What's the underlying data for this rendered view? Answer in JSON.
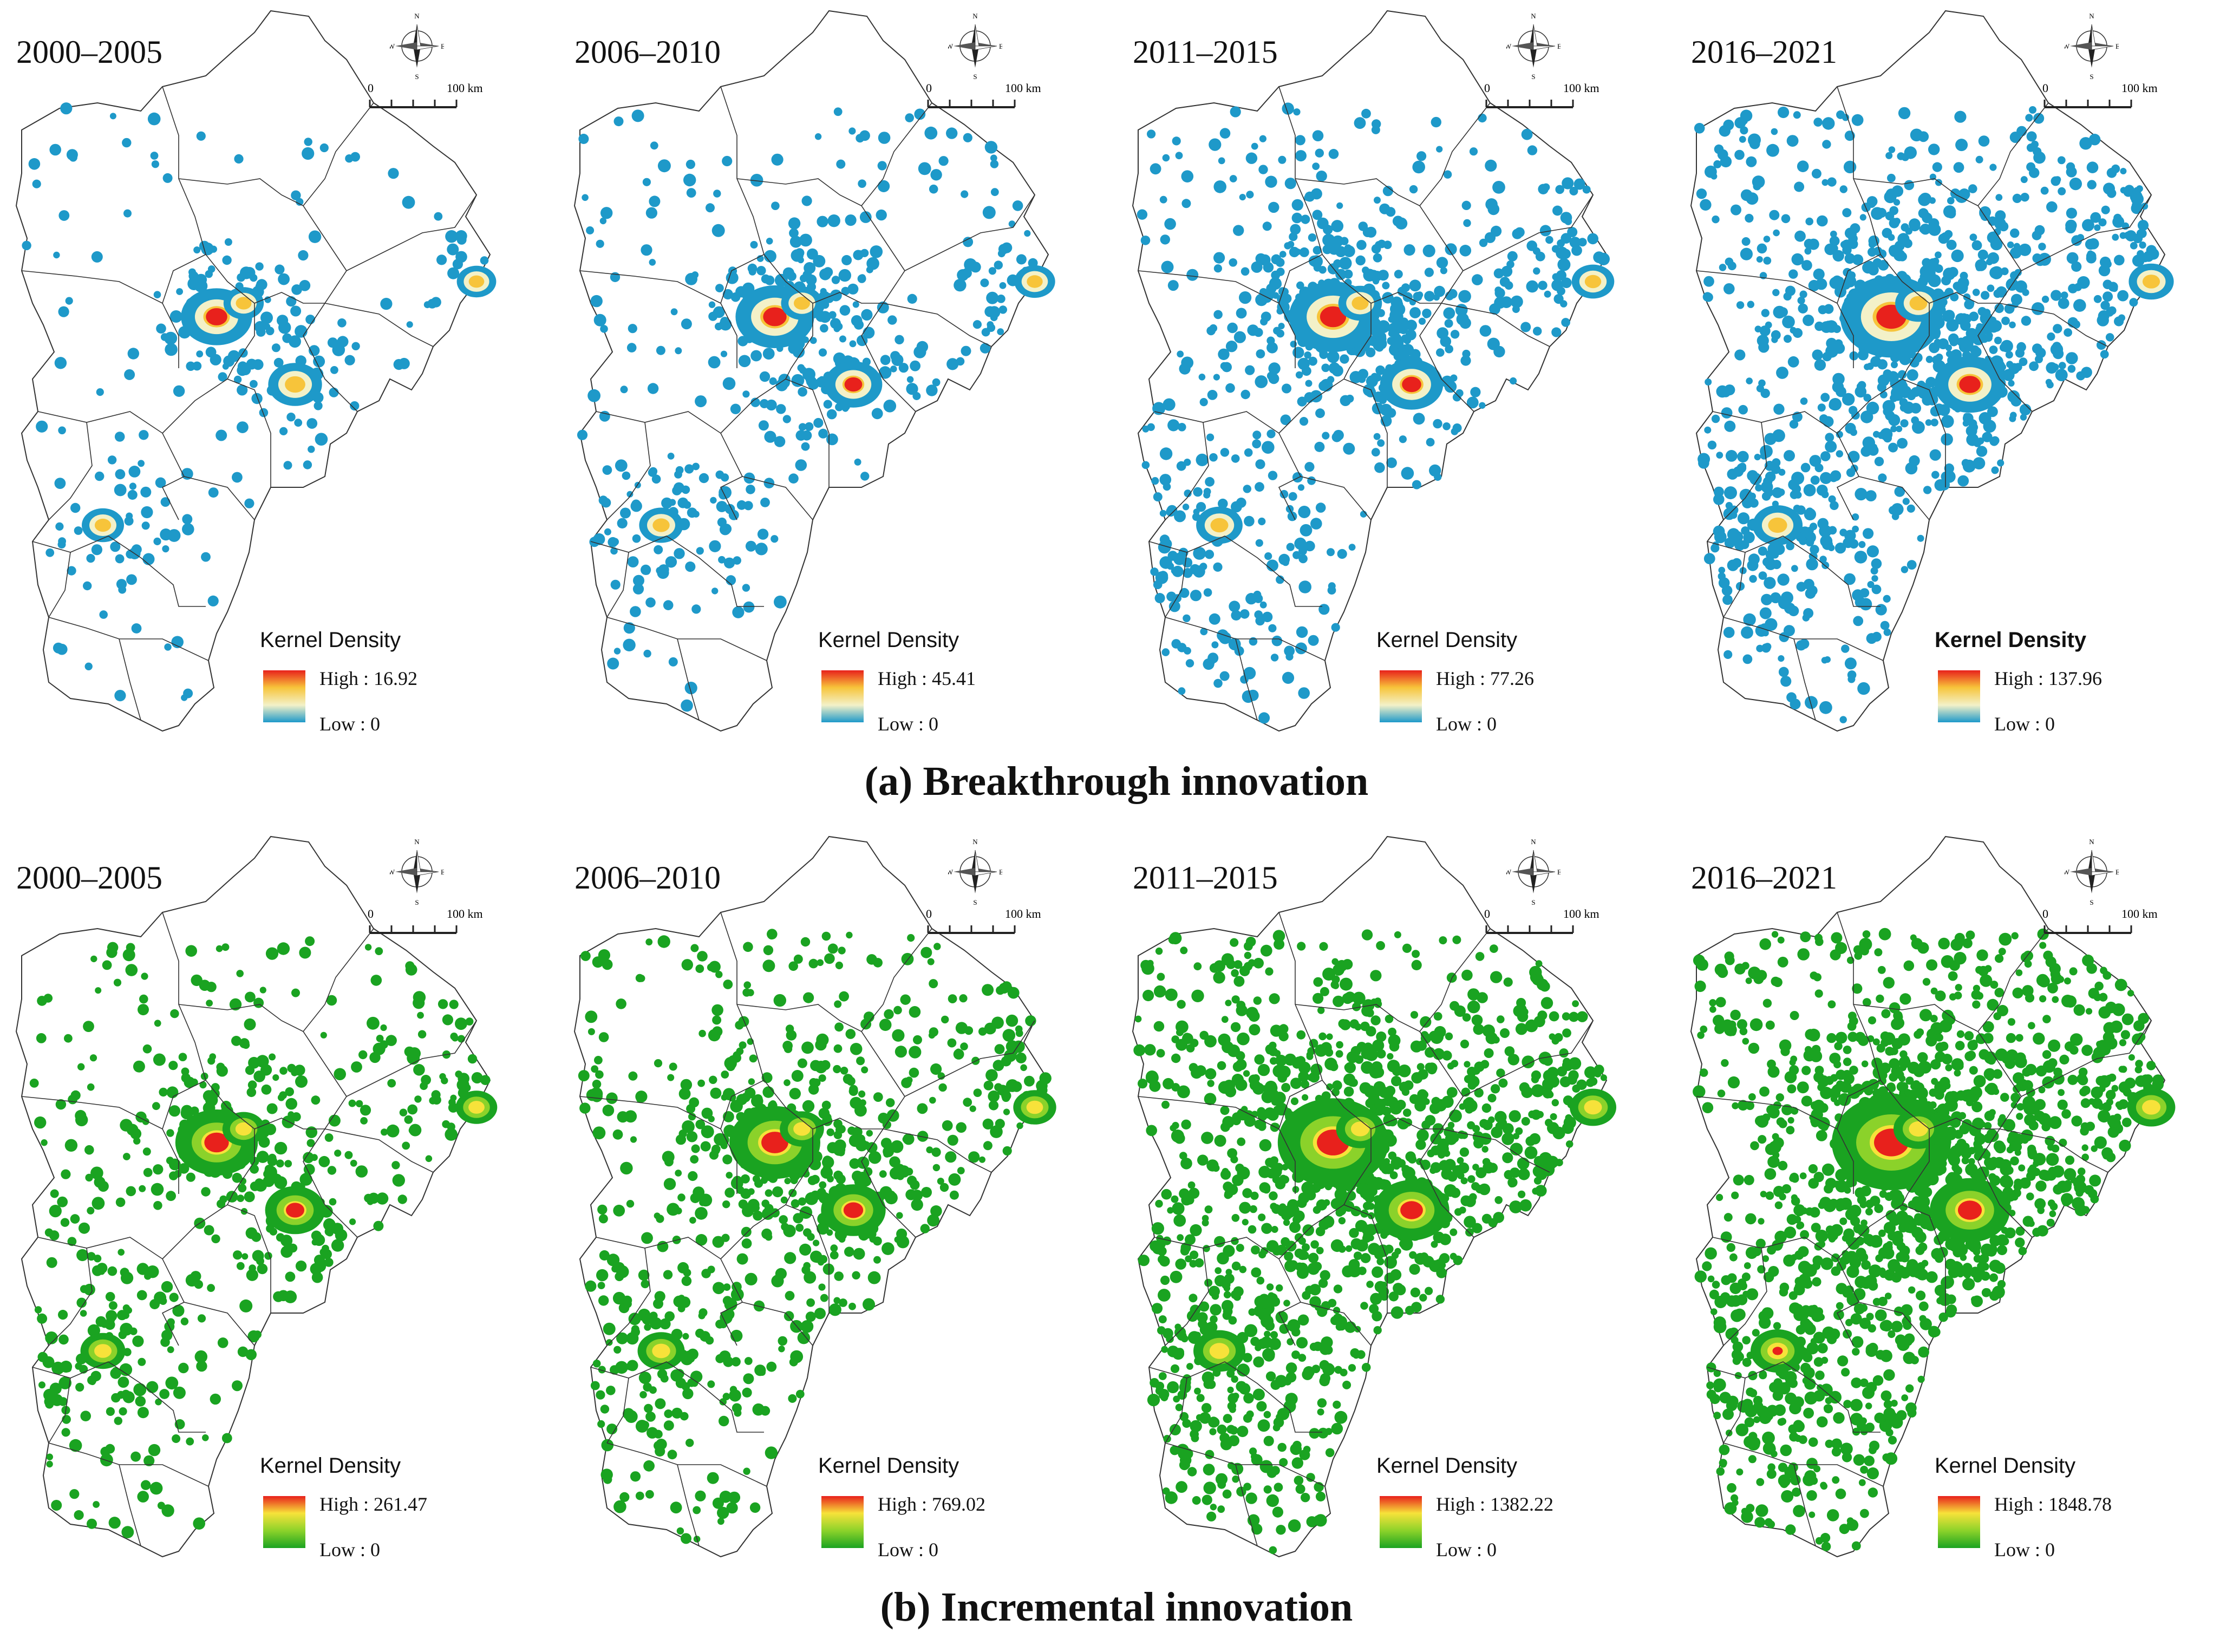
{
  "colors": {
    "boundary": "#333333",
    "background": "#ffffff",
    "breakthrough_ramp": [
      "#e8211c",
      "#f7c43a",
      "#f3f1c8",
      "#1e99c9"
    ],
    "incremental_ramp": [
      "#e8211c",
      "#f7e23a",
      "#8bd22a",
      "#1aa321"
    ],
    "breakthrough_point": "#1e99c9",
    "incremental_point": "#1aa321"
  },
  "compass": {
    "n": "N",
    "s": "S",
    "e": "E",
    "w": "W"
  },
  "scale": {
    "zero": "0",
    "hundred": "100 km"
  },
  "sections": [
    {
      "caption": "(a) Breakthrough innovation",
      "ramp": "breakthrough",
      "panels": [
        {
          "period": "2000–2005",
          "legend_title": "Kernel Density",
          "high": "High : 16.92",
          "low": "Low : 0",
          "high_value": 16.92,
          "intensity": 0.15
        },
        {
          "period": "2006–2010",
          "legend_title": "Kernel Density",
          "high": "High : 45.41",
          "low": "Low : 0",
          "high_value": 45.41,
          "intensity": 0.28
        },
        {
          "period": "2011–2015",
          "legend_title": "Kernel Density",
          "high": "High : 77.26",
          "low": "Low : 0",
          "high_value": 77.26,
          "intensity": 0.45
        },
        {
          "period": "2016–2021",
          "legend_title": "Kernel Density",
          "high": "High : 137.96",
          "low": "Low : 0",
          "high_value": 137.96,
          "intensity": 0.7
        }
      ]
    },
    {
      "caption": "(b) Incremental innovation",
      "ramp": "incremental",
      "panels": [
        {
          "period": "2000–2005",
          "legend_title": "Kernel Density",
          "high": "High : 261.47",
          "low": "Low : 0",
          "high_value": 261.47,
          "intensity": 0.35
        },
        {
          "period": "2006–2010",
          "legend_title": "Kernel Density",
          "high": "High : 769.02",
          "low": "Low : 0",
          "high_value": 769.02,
          "intensity": 0.5
        },
        {
          "period": "2011–2015",
          "legend_title": "Kernel Density",
          "high": "High : 1382.22",
          "low": "Low : 0",
          "high_value": 1382.22,
          "intensity": 0.85
        },
        {
          "period": "2016–2021",
          "legend_title": "Kernel Density",
          "high": "High : 1848.78",
          "low": "Low : 0",
          "high_value": 1848.78,
          "intensity": 1.0
        }
      ]
    }
  ]
}
